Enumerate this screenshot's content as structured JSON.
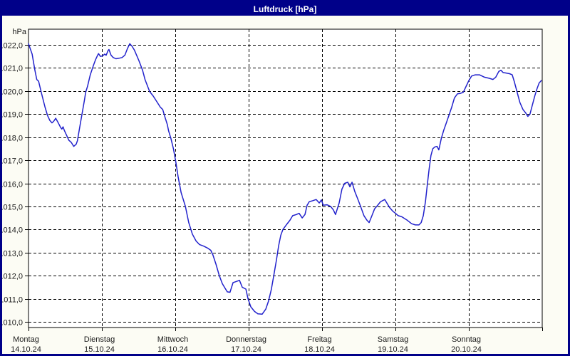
{
  "window": {
    "title": "Luftdruck [hPa]"
  },
  "colors": {
    "titlebar_bg": "#000089",
    "titlebar_text": "#ffffff",
    "window_border": "#000089",
    "window_bg": "#fcfcf4",
    "plot_bg": "#ffffff",
    "grid": "#000000",
    "axis": "#000000",
    "label_text": "#1a1a1a",
    "line": "#2222cc"
  },
  "chart_data": {
    "type": "line",
    "title": "Luftdruck [hPa]",
    "y_axis": {
      "unit": "hPa",
      "min": 1010.0,
      "max": 1022.0,
      "step": 1.0,
      "tick_labels": [
        "1022,0",
        "1021,0",
        "1020,0",
        "1019,0",
        "1018,0",
        "1017,0",
        "1016,0",
        "1015,0",
        "1014,0",
        "1013,0",
        "1012,0",
        "1011,0",
        "1010,0"
      ]
    },
    "x_axis": {
      "hours_per_day": 24,
      "days": [
        {
          "name": "Montag",
          "date": "14.10.24"
        },
        {
          "name": "Dienstag",
          "date": "15.10.24"
        },
        {
          "name": "Mittwoch",
          "date": "16.10.24"
        },
        {
          "name": "Donnerstag",
          "date": "17.10.24"
        },
        {
          "name": "Freitag",
          "date": "18.10.24"
        },
        {
          "name": "Samstag",
          "date": "19.10.24"
        },
        {
          "name": "Sonntag",
          "date": "20.10.24"
        }
      ]
    },
    "grid_style": "dashed",
    "legend": "none",
    "series": [
      {
        "name": "Luftdruck",
        "color": "#2222cc",
        "points": [
          [
            0,
            1022.05
          ],
          [
            1.2,
            1021.6
          ],
          [
            2.1,
            1020.9
          ],
          [
            2.7,
            1020.5
          ],
          [
            3.3,
            1020.42
          ],
          [
            4.2,
            1019.93
          ],
          [
            5.4,
            1019.3
          ],
          [
            6.2,
            1018.95
          ],
          [
            7,
            1018.72
          ],
          [
            7.7,
            1018.62
          ],
          [
            8.3,
            1018.7
          ],
          [
            8.9,
            1018.82
          ],
          [
            9.8,
            1018.6
          ],
          [
            10.5,
            1018.42
          ],
          [
            10.9,
            1018.35
          ],
          [
            11.3,
            1018.45
          ],
          [
            11.7,
            1018.3
          ],
          [
            12.4,
            1018.1
          ],
          [
            13.2,
            1017.87
          ],
          [
            14,
            1017.77
          ],
          [
            14.8,
            1017.6
          ],
          [
            15.6,
            1017.7
          ],
          [
            16,
            1017.85
          ],
          [
            16.7,
            1018.4
          ],
          [
            17.1,
            1018.7
          ],
          [
            17.5,
            1019.0
          ],
          [
            17.9,
            1019.3
          ],
          [
            18.3,
            1019.6
          ],
          [
            18.7,
            1019.95
          ],
          [
            19.3,
            1020.2
          ],
          [
            20.2,
            1020.7
          ],
          [
            21.2,
            1021.1
          ],
          [
            21.9,
            1021.35
          ],
          [
            22.6,
            1021.55
          ],
          [
            22.9,
            1021.62
          ],
          [
            23.5,
            1021.5
          ],
          [
            24.2,
            1021.52
          ],
          [
            24.9,
            1021.6
          ],
          [
            25.4,
            1021.55
          ],
          [
            26,
            1021.75
          ],
          [
            26.3,
            1021.8
          ],
          [
            27,
            1021.55
          ],
          [
            27.7,
            1021.45
          ],
          [
            28.6,
            1021.4
          ],
          [
            29.6,
            1021.42
          ],
          [
            30.6,
            1021.45
          ],
          [
            31.5,
            1021.55
          ],
          [
            32.4,
            1021.85
          ],
          [
            33.1,
            1022.05
          ],
          [
            33.8,
            1021.95
          ],
          [
            34.6,
            1021.78
          ],
          [
            36.1,
            1021.32
          ],
          [
            37.3,
            1020.9
          ],
          [
            38.1,
            1020.5
          ],
          [
            39.6,
            1019.98
          ],
          [
            40.8,
            1019.78
          ],
          [
            42.3,
            1019.47
          ],
          [
            43.1,
            1019.3
          ],
          [
            43.9,
            1019.2
          ],
          [
            44.7,
            1018.84
          ],
          [
            45.4,
            1018.55
          ],
          [
            45.8,
            1018.28
          ],
          [
            46.6,
            1017.93
          ],
          [
            47.4,
            1017.5
          ],
          [
            48.2,
            1016.9
          ],
          [
            48.9,
            1016.3
          ],
          [
            49.9,
            1015.6
          ],
          [
            50.6,
            1015.3
          ],
          [
            51.3,
            1015.0
          ],
          [
            52.4,
            1014.3
          ],
          [
            53.6,
            1013.8
          ],
          [
            54.8,
            1013.5
          ],
          [
            55.9,
            1013.35
          ],
          [
            57.3,
            1013.28
          ],
          [
            58.5,
            1013.2
          ],
          [
            59.6,
            1013.1
          ],
          [
            60.3,
            1012.9
          ],
          [
            61.3,
            1012.5
          ],
          [
            62.4,
            1012.0
          ],
          [
            63.4,
            1011.65
          ],
          [
            64.3,
            1011.45
          ],
          [
            65,
            1011.3
          ],
          [
            65.9,
            1011.28
          ],
          [
            66.9,
            1011.7
          ],
          [
            68,
            1011.75
          ],
          [
            69,
            1011.8
          ],
          [
            69.9,
            1011.5
          ],
          [
            71.1,
            1011.42
          ],
          [
            71.8,
            1011.0
          ],
          [
            72.7,
            1010.65
          ],
          [
            73.9,
            1010.45
          ],
          [
            75,
            1010.35
          ],
          [
            76.4,
            1010.33
          ],
          [
            77.6,
            1010.55
          ],
          [
            78.5,
            1010.9
          ],
          [
            79.4,
            1011.4
          ],
          [
            80.2,
            1012.0
          ],
          [
            81.1,
            1012.7
          ],
          [
            81.8,
            1013.3
          ],
          [
            82.5,
            1013.75
          ],
          [
            83.2,
            1014.0
          ],
          [
            84.3,
            1014.2
          ],
          [
            85.5,
            1014.4
          ],
          [
            86.4,
            1014.6
          ],
          [
            87.6,
            1014.65
          ],
          [
            88.5,
            1014.7
          ],
          [
            89.5,
            1014.5
          ],
          [
            90.4,
            1014.65
          ],
          [
            91.1,
            1015.05
          ],
          [
            91.8,
            1015.2
          ],
          [
            93,
            1015.25
          ],
          [
            94.1,
            1015.3
          ],
          [
            95.1,
            1015.15
          ],
          [
            95.8,
            1015.28
          ],
          [
            96.4,
            1015.05
          ],
          [
            97.6,
            1015.07
          ],
          [
            98.8,
            1015.0
          ],
          [
            99.7,
            1014.85
          ],
          [
            100.4,
            1014.65
          ],
          [
            101.6,
            1015.15
          ],
          [
            102.5,
            1015.75
          ],
          [
            103.4,
            1016.0
          ],
          [
            104.4,
            1016.05
          ],
          [
            105.1,
            1015.85
          ],
          [
            105.8,
            1016.05
          ],
          [
            106.7,
            1015.65
          ],
          [
            107.6,
            1015.35
          ],
          [
            108.6,
            1015.0
          ],
          [
            109.7,
            1014.6
          ],
          [
            110.7,
            1014.4
          ],
          [
            111.4,
            1014.3
          ],
          [
            112.3,
            1014.6
          ],
          [
            113.2,
            1014.9
          ],
          [
            113.9,
            1015.0
          ],
          [
            115.1,
            1015.2
          ],
          [
            116.5,
            1015.3
          ],
          [
            118.1,
            1014.95
          ],
          [
            119.1,
            1014.8
          ],
          [
            120,
            1014.7
          ],
          [
            120.9,
            1014.6
          ],
          [
            122.1,
            1014.55
          ],
          [
            123.9,
            1014.4
          ],
          [
            125.3,
            1014.25
          ],
          [
            126.5,
            1014.2
          ],
          [
            127.7,
            1014.2
          ],
          [
            128.4,
            1014.3
          ],
          [
            129.1,
            1014.6
          ],
          [
            129.8,
            1015.2
          ],
          [
            130.4,
            1015.9
          ],
          [
            131,
            1016.6
          ],
          [
            131.6,
            1017.2
          ],
          [
            132.2,
            1017.5
          ],
          [
            132.9,
            1017.58
          ],
          [
            133.6,
            1017.6
          ],
          [
            134.2,
            1017.45
          ],
          [
            135,
            1017.95
          ],
          [
            135.8,
            1018.3
          ],
          [
            136.6,
            1018.6
          ],
          [
            137.5,
            1018.95
          ],
          [
            138.4,
            1019.3
          ],
          [
            139.3,
            1019.7
          ],
          [
            140.3,
            1019.88
          ],
          [
            141.3,
            1019.9
          ],
          [
            142.2,
            1019.95
          ],
          [
            143.1,
            1020.2
          ],
          [
            144,
            1020.45
          ],
          [
            144.9,
            1020.65
          ],
          [
            146.1,
            1020.7
          ],
          [
            147.5,
            1020.7
          ],
          [
            149.1,
            1020.6
          ],
          [
            150.7,
            1020.55
          ],
          [
            151.9,
            1020.5
          ],
          [
            152.8,
            1020.6
          ],
          [
            153.8,
            1020.85
          ],
          [
            154.5,
            1020.9
          ],
          [
            155.2,
            1020.8
          ],
          [
            156.1,
            1020.78
          ],
          [
            157.3,
            1020.75
          ],
          [
            158.2,
            1020.7
          ],
          [
            158.9,
            1020.4
          ],
          [
            159.8,
            1019.95
          ],
          [
            160.7,
            1019.5
          ],
          [
            161.7,
            1019.2
          ],
          [
            162.6,
            1019.05
          ],
          [
            163.3,
            1018.9
          ],
          [
            164,
            1019.0
          ],
          [
            164.7,
            1019.35
          ],
          [
            165.6,
            1019.8
          ],
          [
            166.3,
            1020.1
          ],
          [
            167,
            1020.35
          ],
          [
            167.7,
            1020.45
          ]
        ]
      }
    ]
  }
}
